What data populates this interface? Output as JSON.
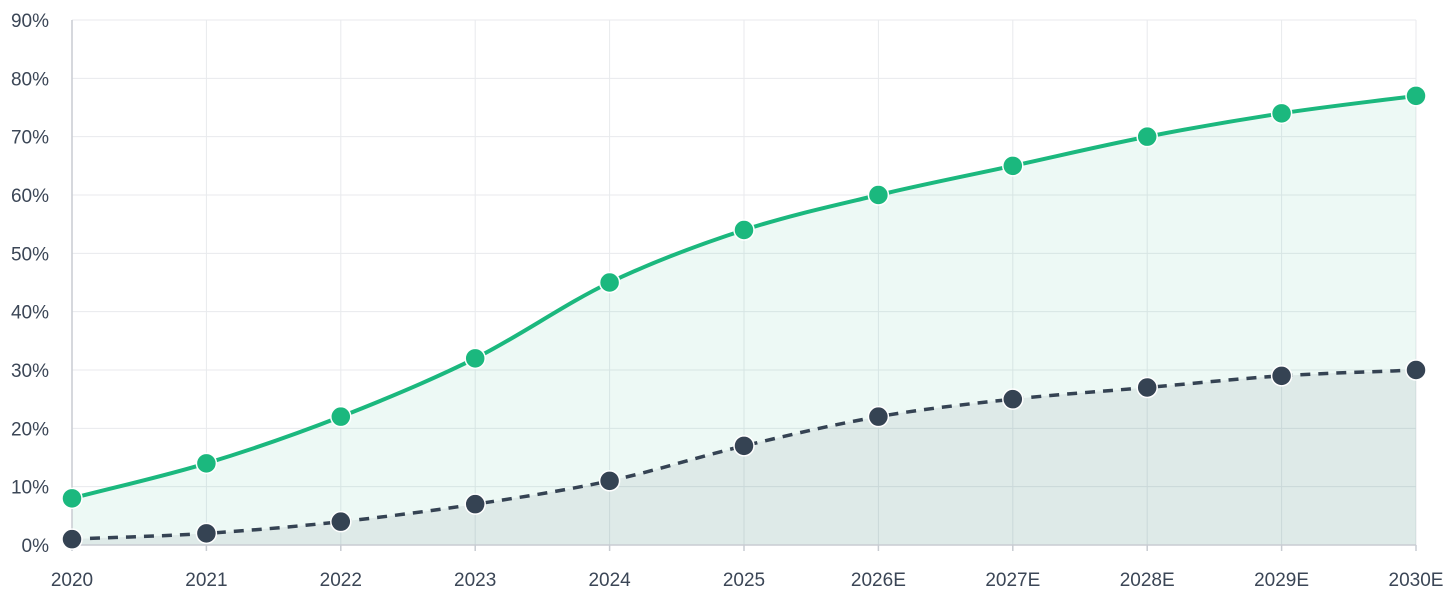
{
  "chart_data": {
    "type": "line",
    "categories": [
      "2020",
      "2021",
      "2022",
      "2023",
      "2024",
      "2025",
      "2026E",
      "2027E",
      "2028E",
      "2029E",
      "2030E"
    ],
    "series": [
      {
        "values": [
          8,
          14,
          22,
          32,
          45,
          54,
          60,
          65,
          70,
          74,
          77
        ],
        "color": "#1bb87e",
        "line_style": "solid",
        "area_fill": true
      },
      {
        "values": [
          1,
          2,
          4,
          7,
          11,
          17,
          22,
          25,
          27,
          29,
          30
        ],
        "color": "#354353",
        "line_style": "dashed",
        "area_fill": true
      }
    ],
    "ylim": [
      0,
      90
    ],
    "yticks": [
      "0%",
      "10%",
      "20%",
      "30%",
      "40%",
      "50%",
      "60%",
      "70%",
      "80%",
      "90%"
    ],
    "title": "",
    "xlabel": "",
    "ylabel": "",
    "grid": true,
    "legend": "none"
  }
}
